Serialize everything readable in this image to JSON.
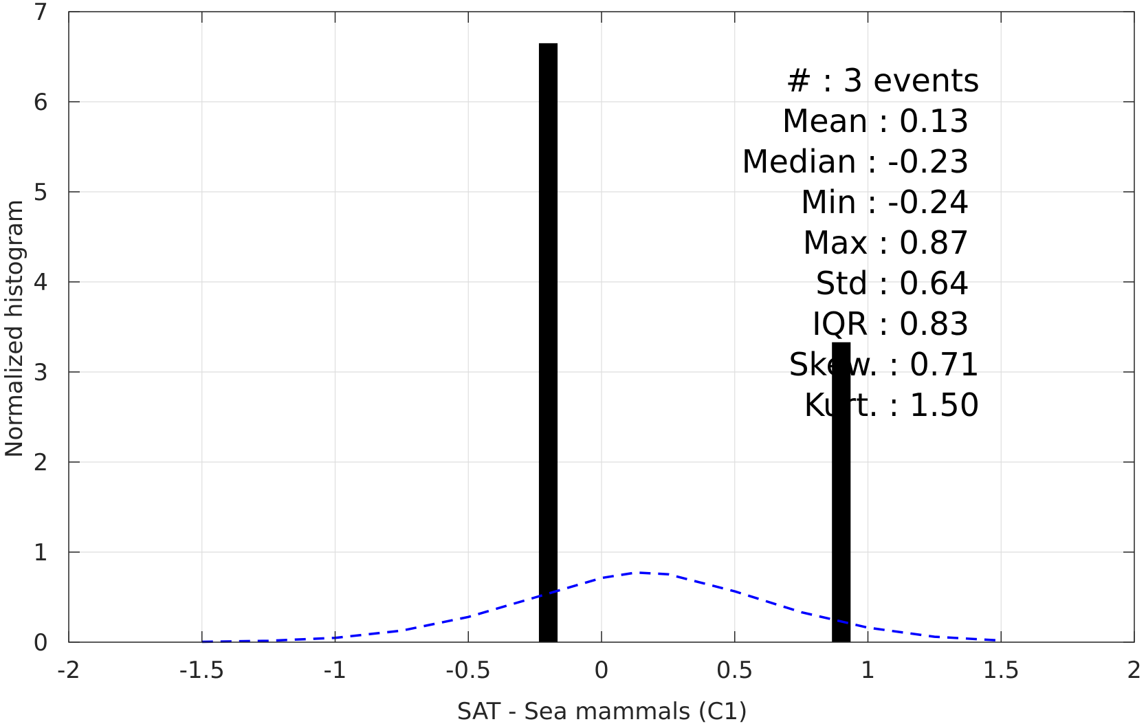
{
  "chart_data": {
    "type": "bar",
    "title": "",
    "xlabel": "SAT - Sea mammals (C1)",
    "ylabel": "Normalized histogram",
    "xlim": [
      -2,
      2
    ],
    "ylim": [
      0,
      7
    ],
    "xticks": [
      -2,
      -1.5,
      -1,
      -0.5,
      0,
      0.5,
      1,
      1.5,
      2
    ],
    "xtick_labels": [
      "-2",
      "-1.5",
      "-1",
      "-0.5",
      "0",
      "0.5",
      "1",
      "1.5",
      "2"
    ],
    "yticks": [
      0,
      1,
      2,
      3,
      4,
      5,
      6,
      7
    ],
    "ytick_labels": [
      "0",
      "1",
      "2",
      "3",
      "4",
      "5",
      "6",
      "7"
    ],
    "grid": true,
    "bar_width": 0.07,
    "bars": [
      {
        "x": -0.2,
        "value": 6.65
      },
      {
        "x": 0.9,
        "value": 3.33
      }
    ],
    "series": [
      {
        "type": "line",
        "style": "dashed",
        "color": "#0000ff",
        "x": [
          -1.5,
          -1.25,
          -1.0,
          -0.75,
          -0.5,
          -0.25,
          0.0,
          0.13,
          0.25,
          0.5,
          0.75,
          1.0,
          1.25,
          1.5
        ],
        "values": [
          0.0038,
          0.015,
          0.048,
          0.128,
          0.28,
          0.496,
          0.713,
          0.773,
          0.754,
          0.564,
          0.333,
          0.161,
          0.06,
          0.018
        ]
      }
    ],
    "annotations": [
      "#  : 3 events",
      "Mean : 0.13",
      "Median : -0.23",
      "Min : -0.24",
      "Max : 0.87",
      "Std : 0.64",
      "IQR : 0.83",
      "Skew. : 0.71",
      "Kurt. : 1.50"
    ],
    "colors": {
      "bars": "#000000",
      "fit_line": "#0000ff",
      "grid": "#dedede",
      "axes": "#262626"
    }
  }
}
